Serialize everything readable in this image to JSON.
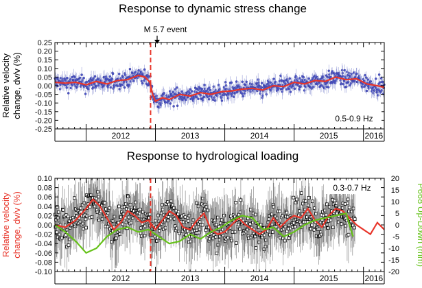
{
  "colors": {
    "red": "#e8352a",
    "green": "#66c21a",
    "blue": "#4b55c8",
    "black": "#000000",
    "errorbar": "#888888"
  },
  "chart_data": [
    {
      "type": "scatter",
      "title": "Response to dynamic stress change",
      "ylabel_line1": "Relative velocity",
      "ylabel_line2": "change, dv/v (%)",
      "ylim": [
        -0.25,
        0.25
      ],
      "yticks": [
        "0.25",
        "0.20",
        "0.15",
        "0.10",
        "0.05",
        "0.00",
        "-0.05",
        "-0.10",
        "-0.15",
        "-0.20",
        "-0.25"
      ],
      "xlim": [
        2011.55,
        2016.3
      ],
      "year_labels": [
        "2012",
        "2013",
        "2014",
        "2015",
        "2016"
      ],
      "band_label": "0.5-0.9 Hz",
      "event_label": "M 5.7 event",
      "event_time": 2012.93,
      "series": [
        {
          "kind": "daily-points",
          "color": "blue"
        },
        {
          "kind": "smoothed",
          "color": "red",
          "x": [
            2011.55,
            2011.7,
            2011.85,
            2012.0,
            2012.15,
            2012.3,
            2012.45,
            2012.6,
            2012.75,
            2012.85,
            2012.92,
            2012.96,
            2013.0,
            2013.1,
            2013.2,
            2013.35,
            2013.5,
            2013.65,
            2013.8,
            2013.95,
            2014.1,
            2014.25,
            2014.4,
            2014.55,
            2014.7,
            2014.85,
            2015.0,
            2015.15,
            2015.3,
            2015.45,
            2015.6,
            2015.75,
            2015.9,
            2016.05,
            2016.2,
            2016.3
          ],
          "y": [
            0.02,
            0.015,
            0.02,
            0.005,
            0.025,
            0.01,
            0.03,
            0.035,
            0.06,
            0.05,
            0.02,
            -0.05,
            -0.09,
            -0.07,
            -0.08,
            -0.05,
            -0.06,
            -0.04,
            -0.05,
            -0.035,
            -0.03,
            -0.02,
            -0.015,
            -0.025,
            0.0,
            -0.005,
            0.02,
            0.01,
            0.03,
            0.025,
            0.05,
            0.035,
            0.04,
            0.01,
            0.0,
            -0.01
          ]
        }
      ]
    },
    {
      "type": "line",
      "title": "Response to hydrological loading",
      "ylabel_line1": "Relative velocity",
      "ylabel_line2": "change, dv/v (%)",
      "ylim": [
        -0.1,
        0.1
      ],
      "yticks": [
        "0.10",
        "0.08",
        "0.06",
        "0.04",
        "0.02",
        "0.00",
        "-0.02",
        "-0.04",
        "-0.06",
        "-0.08",
        "-0.10"
      ],
      "y2label": "P668 Up-Down (mm)",
      "y2lim": [
        -20,
        20
      ],
      "y2ticks": [
        "20",
        "15",
        "10",
        "5",
        "0",
        "-5",
        "-10",
        "-15",
        "-20"
      ],
      "xlim": [
        2011.55,
        2016.3
      ],
      "year_labels": [
        "2012",
        "2013",
        "2014",
        "2015",
        "2016"
      ],
      "band_label": "0.3-0.7 Hz",
      "event_time": 2012.93,
      "series": [
        {
          "kind": "daily-points",
          "color": "black"
        },
        {
          "kind": "dvv-smoothed",
          "color": "red",
          "x": [
            2011.55,
            2011.7,
            2011.85,
            2012.0,
            2012.1,
            2012.2,
            2012.3,
            2012.4,
            2012.5,
            2012.6,
            2012.7,
            2012.8,
            2012.9,
            2013.0,
            2013.1,
            2013.2,
            2013.3,
            2013.4,
            2013.5,
            2013.6,
            2013.7,
            2013.8,
            2013.9,
            2014.0,
            2014.1,
            2014.2,
            2014.3,
            2014.4,
            2014.5,
            2014.6,
            2014.7,
            2014.8,
            2014.9,
            2015.0,
            2015.1,
            2015.2,
            2015.3,
            2015.4,
            2015.5,
            2015.6,
            2015.7,
            2015.8,
            2015.9,
            2016.0,
            2016.1,
            2016.2,
            2016.3
          ],
          "y": [
            0.0,
            -0.005,
            0.01,
            0.035,
            0.055,
            0.04,
            0.015,
            -0.01,
            0.005,
            0.03,
            0.02,
            0.005,
            0.01,
            -0.01,
            0.01,
            0.03,
            0.02,
            -0.005,
            -0.01,
            0.01,
            0.025,
            -0.01,
            -0.02,
            -0.015,
            0.0,
            0.015,
            0.0,
            -0.01,
            -0.02,
            -0.01,
            0.015,
            -0.005,
            0.01,
            0.02,
            0.015,
            0.035,
            0.01,
            -0.005,
            0.02,
            0.035,
            0.03,
            0.015,
            0.0,
            -0.01,
            -0.02,
            0.005,
            -0.01
          ]
        },
        {
          "kind": "gps-up",
          "color": "green",
          "axis": "right",
          "x": [
            2011.55,
            2011.7,
            2011.85,
            2012.0,
            2012.15,
            2012.3,
            2012.45,
            2012.6,
            2012.75,
            2012.9,
            2013.05,
            2013.2,
            2013.35,
            2013.5,
            2013.65,
            2013.8,
            2013.95,
            2014.1,
            2014.25,
            2014.4,
            2014.55,
            2014.7,
            2014.85,
            2015.0,
            2015.15,
            2015.3,
            2015.45,
            2015.6,
            2015.75,
            2015.85
          ],
          "y": [
            0,
            -3,
            -7,
            -12,
            -10,
            -5,
            -2,
            -1,
            -3,
            -2,
            -5,
            -8,
            -7,
            -4,
            -6,
            -3,
            -1,
            2,
            4,
            3,
            -2,
            -1,
            -5,
            -3,
            0,
            2,
            3,
            4,
            5,
            -5
          ]
        }
      ]
    }
  ]
}
